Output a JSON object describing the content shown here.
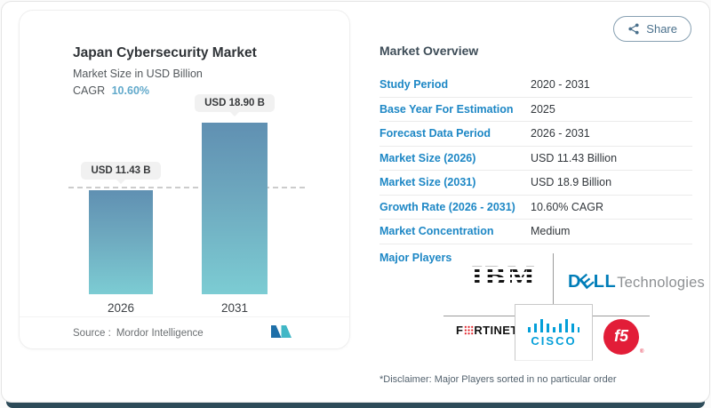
{
  "page": {
    "share_label": "Share"
  },
  "chart_card": {
    "title": "Japan Cybersecurity Market",
    "subtitle": "Market Size in USD Billion",
    "cagr_label": "CAGR",
    "cagr_value": "10.60%",
    "source_label": "Source :",
    "source_value": "Mordor Intelligence"
  },
  "chart_data": {
    "type": "bar",
    "title": "Japan Cybersecurity Market",
    "subtitle": "Market Size in USD Billion",
    "unit": "USD Billion",
    "categories": [
      "2026",
      "2031"
    ],
    "values": [
      11.43,
      18.9
    ],
    "bar_labels": [
      "USD 11.43 B",
      "USD 18.90 B"
    ],
    "cagr": "10.60%",
    "baseline_dashed_at": 11.43,
    "legend": "none",
    "grid": "off",
    "bar_gradient": [
      "#6090b2",
      "#7cccd3"
    ]
  },
  "overview": {
    "title": "Market Overview",
    "rows": [
      {
        "label": "Study Period",
        "value": "2020 - 2031"
      },
      {
        "label": "Base Year For Estimation",
        "value": "2025"
      },
      {
        "label": "Forecast Data Period",
        "value": "2026 - 2031"
      },
      {
        "label": "Market Size (2026)",
        "value": "USD 11.43 Billion"
      },
      {
        "label": "Market Size (2031)",
        "value": "USD 18.9 Billion"
      },
      {
        "label": "Growth Rate (2026 - 2031)",
        "value": "10.60% CAGR"
      },
      {
        "label": "Market Concentration",
        "value": "Medium"
      }
    ],
    "major_players_label": "Major Players",
    "major_players": [
      "IBM",
      "Dell Technologies",
      "Fortinet",
      "Cisco",
      "F5"
    ],
    "disclaimer": "*Disclaimer: Major Players sorted in no particular order"
  },
  "logos": {
    "ibm": "IBM",
    "dell": {
      "parts": [
        "D",
        "E",
        "LL"
      ],
      "suffix": "Technologies"
    },
    "fortinet": {
      "parts": [
        "F",
        "RTINET."
      ]
    },
    "cisco": "CISCO",
    "f5": "f5"
  },
  "colors": {
    "accent_blue": "#1d87c5",
    "cagr_blue": "#61a9cb",
    "bar_top": "#6090b2",
    "bar_bottom": "#7cccd3",
    "bottom_bar": "#2d4b59",
    "share_slate": "#4a708c",
    "dell_blue": "#007DB8",
    "cisco_blue": "#049fd9",
    "f5_red": "#e21d38",
    "fortinet_red": "#e11f26",
    "ibm_black": "#131313",
    "mordor_dark_blue": "#1e6fa8",
    "mordor_teal": "#41b7c6"
  }
}
